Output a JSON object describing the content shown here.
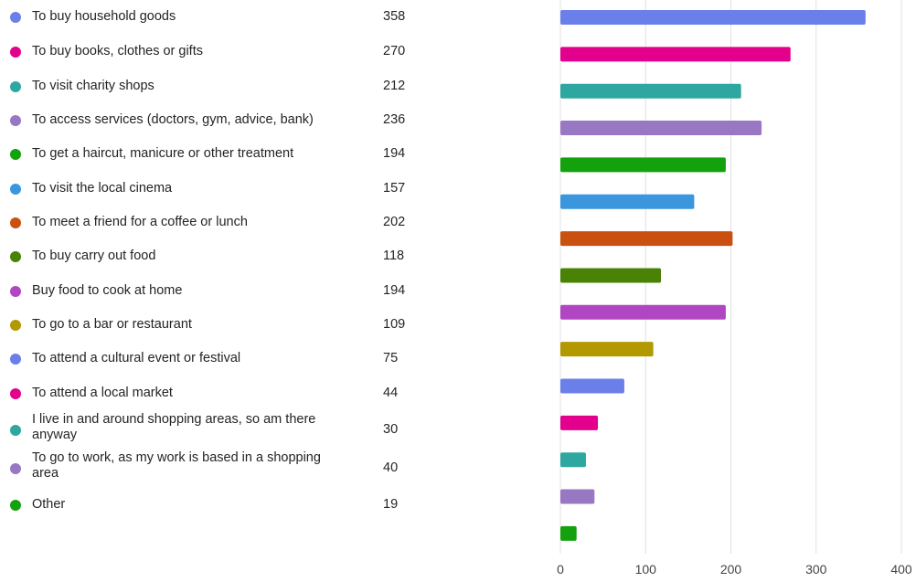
{
  "chart_data": {
    "type": "bar",
    "orientation": "horizontal",
    "categories": [
      "To buy household goods",
      "To buy books, clothes or gifts",
      "To visit charity shops",
      "To access services (doctors, gym, advice, bank)",
      "To get a haircut, manicure or other treatment",
      "To visit the local cinema",
      "To meet a friend for a coffee or lunch",
      "To buy carry out food",
      "Buy food to cook at home",
      "To go to a bar or restaurant",
      "To attend a cultural event or festival",
      "To attend a local market",
      "I live in and around shopping areas, so am there anyway",
      "To go to work, as my work is based in a shopping area",
      "Other"
    ],
    "values": [
      358,
      270,
      212,
      236,
      194,
      157,
      202,
      118,
      194,
      109,
      75,
      44,
      30,
      40,
      19
    ],
    "colors": [
      "#6b7fea",
      "#e3008c",
      "#2ea7a0",
      "#9878c3",
      "#13a10e",
      "#3a96dd",
      "#ca5010",
      "#498205",
      "#b146c2",
      "#b39900",
      "#6b7fea",
      "#e3008c",
      "#2ea7a0",
      "#9878c3",
      "#13a10e"
    ],
    "xticks": [
      0,
      100,
      200,
      300,
      400
    ],
    "xlim": [
      0,
      400
    ],
    "grid": true,
    "legend": "left"
  }
}
